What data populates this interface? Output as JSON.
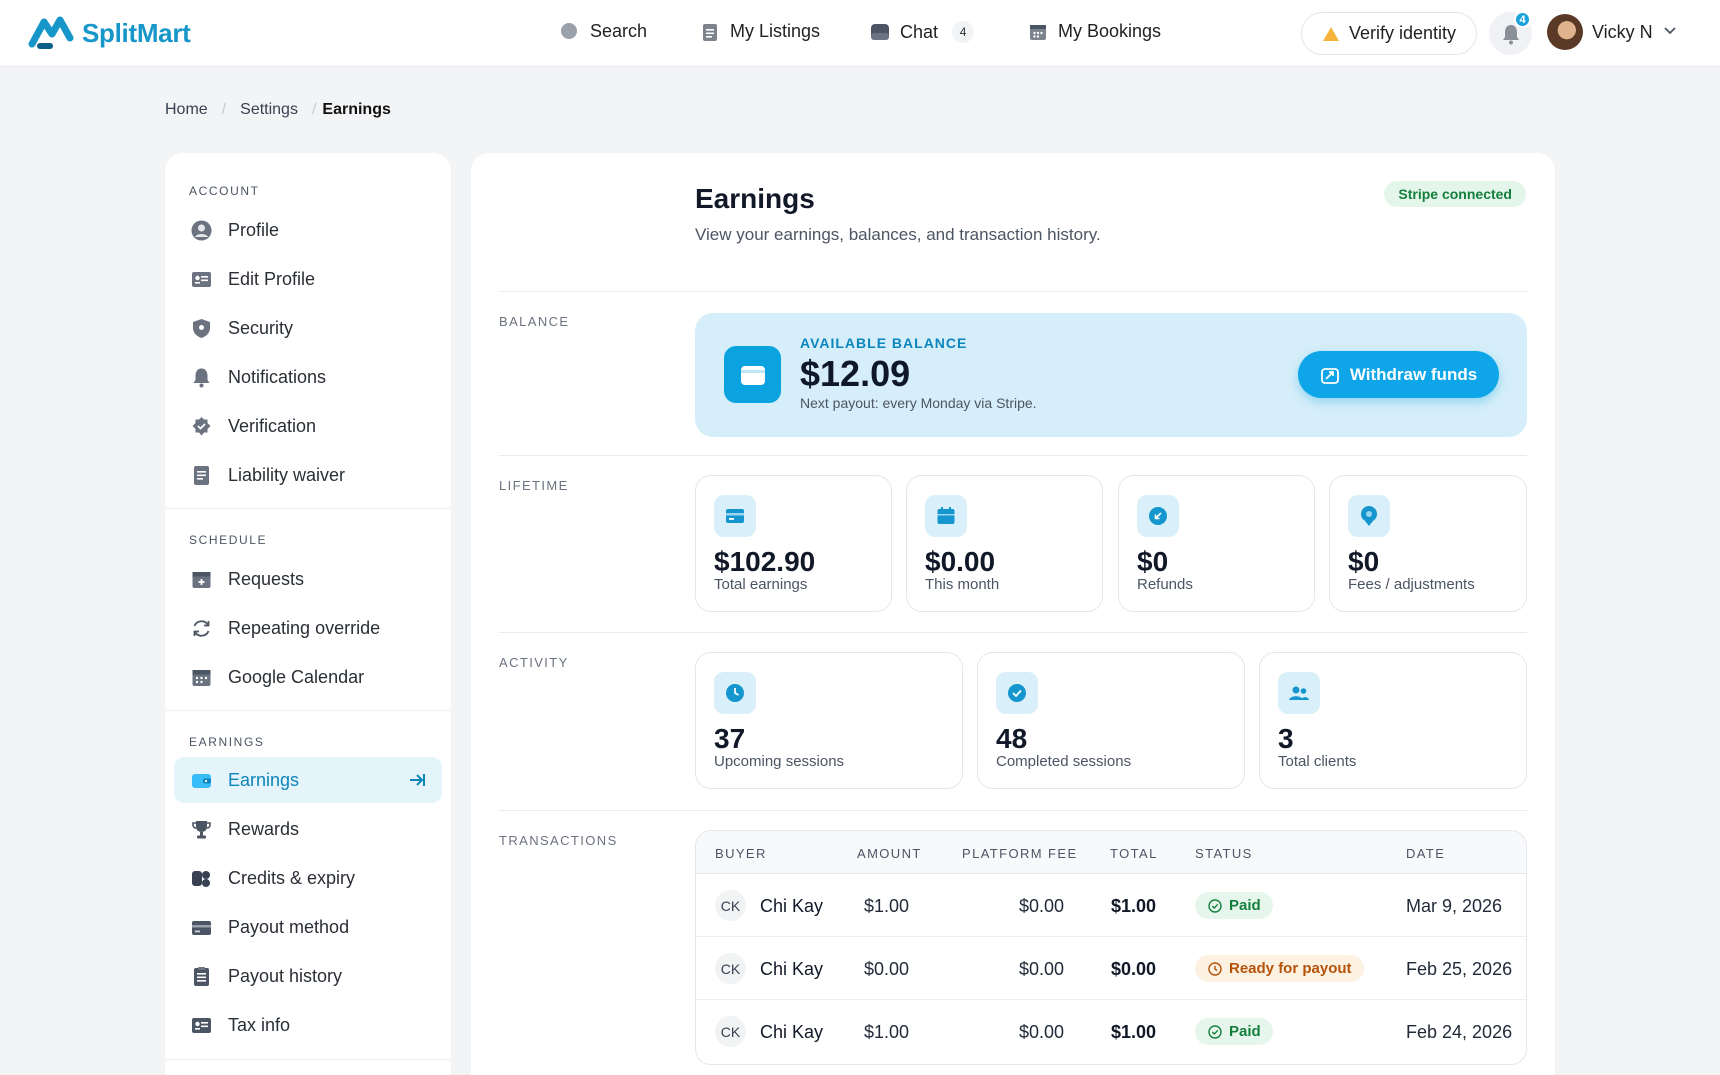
{
  "brand": {
    "name": "SplitMart",
    "accent": "#1796c9"
  },
  "nav": {
    "search": "Search",
    "listings": "My Listings",
    "chat": "Chat",
    "chat_count": "4",
    "bookings": "My Bookings",
    "verify": "Verify identity",
    "notification_count": "4",
    "user_name": "Vicky N"
  },
  "breadcrumb": {
    "home": "Home",
    "settings": "Settings",
    "current": "Earnings"
  },
  "sidebar": {
    "account_title": "ACCOUNT",
    "account_items": [
      "Profile",
      "Edit Profile",
      "Security",
      "Notifications",
      "Verification",
      "Liability waiver"
    ],
    "schedule_title": "SCHEDULE",
    "schedule_items": [
      "Requests",
      "Repeating override",
      "Google Calendar"
    ],
    "earnings_title": "EARNINGS",
    "earnings_items": [
      "Earnings",
      "Rewards",
      "Credits & expiry",
      "Payout method",
      "Payout history",
      "Tax info"
    ],
    "active_item": "Earnings"
  },
  "page": {
    "title": "Earnings",
    "subtitle": "View your earnings, balances, and transaction history.",
    "stripe_badge": "Stripe connected"
  },
  "sections": {
    "balance": "BALANCE",
    "lifetime": "LIFETIME",
    "activity": "ACTIVITY",
    "transactions": "TRANSACTIONS"
  },
  "balance": {
    "label": "AVAILABLE BALANCE",
    "amount": "$12.09",
    "note": "Next payout: every Monday via Stripe.",
    "withdraw": "Withdraw funds"
  },
  "lifetime": [
    {
      "value": "$102.90",
      "label": "Total earnings",
      "icon": "card-icon"
    },
    {
      "value": "$0.00",
      "label": "This month",
      "icon": "calendar-icon"
    },
    {
      "value": "$0",
      "label": "Refunds",
      "icon": "refund-icon"
    },
    {
      "value": "$0",
      "label": "Fees / adjustments",
      "icon": "fee-icon"
    }
  ],
  "activity": [
    {
      "value": "37",
      "label": "Upcoming sessions",
      "icon": "clock-icon"
    },
    {
      "value": "48",
      "label": "Completed sessions",
      "icon": "check-circle-icon"
    },
    {
      "value": "3",
      "label": "Total clients",
      "icon": "users-icon"
    }
  ],
  "transactions": {
    "headers": {
      "buyer": "BUYER",
      "amount": "AMOUNT",
      "fee": "PLATFORM FEE",
      "total": "TOTAL",
      "status": "STATUS",
      "date": "DATE"
    },
    "rows": [
      {
        "initials": "CK",
        "buyer": "Chi Kay",
        "amount": "$1.00",
        "fee": "$0.00",
        "total": "$1.00",
        "status": "Paid",
        "date": "Mar 9, 2026"
      },
      {
        "initials": "CK",
        "buyer": "Chi Kay",
        "amount": "$0.00",
        "fee": "$0.00",
        "total": "$0.00",
        "status": "Ready for payout",
        "date": "Feb 25, 2026"
      },
      {
        "initials": "CK",
        "buyer": "Chi Kay",
        "amount": "$1.00",
        "fee": "$0.00",
        "total": "$1.00",
        "status": "Paid",
        "date": "Feb 24, 2026"
      }
    ]
  }
}
